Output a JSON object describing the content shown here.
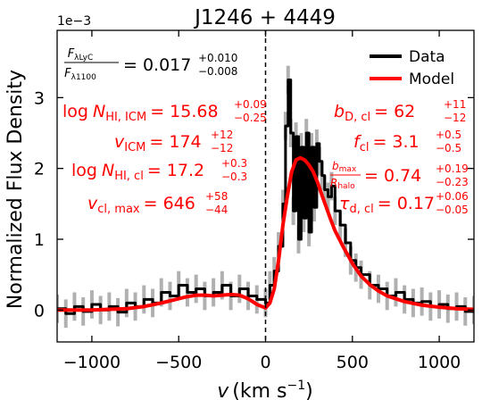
{
  "chart_data": {
    "type": "line",
    "title": "J1246 + 4449",
    "xlabel_var": "v",
    "xlabel_unit": "(km s",
    "xlabel_exp": "−1",
    "xlabel_close": ")",
    "ylabel": "Normalized Flux Density",
    "y_offset_text": "1e−3",
    "xlim": [
      -1200,
      1200
    ],
    "ylim": [
      -0.45,
      3.95
    ],
    "x_ticks": [
      -1000,
      -500,
      0,
      500,
      1000
    ],
    "x_tick_labels": [
      "−1000",
      "−500",
      "0",
      "500",
      "1000"
    ],
    "y_ticks": [
      0,
      1,
      2,
      3
    ],
    "y_tick_labels": [
      "0",
      "1",
      "2",
      "3"
    ],
    "vline_x": 0,
    "legend_position": "top-right",
    "colors": {
      "data": "#000000",
      "error": "#b0b0b0",
      "model": "#ff0000",
      "annotation_red": "#ff0000"
    },
    "series": [
      {
        "name": "Data",
        "x": [
          -1200,
          -1150,
          -1100,
          -1050,
          -1000,
          -950,
          -900,
          -850,
          -800,
          -750,
          -700,
          -650,
          -600,
          -550,
          -500,
          -450,
          -400,
          -350,
          -300,
          -250,
          -200,
          -150,
          -100,
          -50,
          0,
          25,
          50,
          75,
          100,
          115,
          130,
          145,
          160,
          175,
          190,
          205,
          220,
          235,
          250,
          265,
          280,
          295,
          310,
          325,
          340,
          360,
          380,
          400,
          430,
          460,
          490,
          520,
          550,
          600,
          650,
          700,
          750,
          800,
          850,
          900,
          950,
          1000,
          1050,
          1100,
          1150,
          1200
        ],
        "y": [
          0.02,
          -0.05,
          0.05,
          -0.02,
          0.08,
          0.0,
          0.05,
          -0.03,
          0.1,
          0.05,
          0.15,
          0.1,
          0.25,
          0.2,
          0.35,
          0.25,
          0.3,
          0.2,
          0.25,
          0.35,
          0.2,
          0.3,
          0.2,
          0.15,
          0.1,
          0.35,
          0.55,
          0.9,
          1.5,
          2.6,
          3.25,
          2.5,
          1.4,
          2.45,
          1.0,
          2.3,
          1.3,
          2.5,
          1.1,
          2.3,
          1.45,
          2.35,
          2.1,
          1.9,
          1.7,
          1.6,
          1.75,
          1.4,
          1.2,
          0.95,
          0.7,
          0.6,
          0.5,
          0.35,
          0.3,
          0.2,
          0.25,
          0.15,
          0.1,
          0.12,
          0.05,
          0.08,
          0.02,
          0.05,
          -0.02,
          0.0
        ],
        "err": 0.2
      },
      {
        "name": "Model",
        "x": [
          -1200,
          -1000,
          -800,
          -700,
          -600,
          -500,
          -450,
          -400,
          -350,
          -300,
          -250,
          -200,
          -150,
          -100,
          -50,
          0,
          25,
          50,
          75,
          100,
          125,
          150,
          175,
          200,
          225,
          250,
          275,
          300,
          325,
          350,
          375,
          400,
          450,
          500,
          550,
          600,
          650,
          700,
          800,
          900,
          1000,
          1100,
          1200
        ],
        "y": [
          0.0,
          0.0,
          0.02,
          0.05,
          0.1,
          0.16,
          0.19,
          0.21,
          0.21,
          0.2,
          0.21,
          0.22,
          0.21,
          0.16,
          0.08,
          0.03,
          0.1,
          0.3,
          0.7,
          1.2,
          1.6,
          1.95,
          2.12,
          2.15,
          2.12,
          2.05,
          1.95,
          1.8,
          1.62,
          1.45,
          1.28,
          1.12,
          0.88,
          0.66,
          0.48,
          0.36,
          0.27,
          0.2,
          0.12,
          0.07,
          0.04,
          0.02,
          0.01
        ]
      }
    ],
    "annotations": {
      "ratio": {
        "num_F": "F",
        "num_sub": "λLyC",
        "den_F": "F",
        "den_sub": "λ1100",
        "eq": "= 0.017",
        "sup": "+0.010",
        "sub": "−0.008"
      },
      "left": [
        {
          "lead": "log",
          "var": "N",
          "var_sub": "HI, ICM",
          "eq": "= 15.68",
          "sup": "+0.09",
          "sub": "−0.25"
        },
        {
          "lead": "",
          "var": "v",
          "var_sub": "ICM",
          "eq": "= 174",
          "sup": "+12",
          "sub": "−12"
        },
        {
          "lead": "log",
          "var": "N",
          "var_sub": "HI, cl",
          "eq": "= 17.2",
          "sup": "+0.3",
          "sub": "−0.3"
        },
        {
          "lead": "",
          "var": "v",
          "var_sub": "cl, max",
          "eq": "= 646",
          "sup": "+58",
          "sub": "−44"
        }
      ],
      "right": [
        {
          "var": "b",
          "var_sub": "D, cl",
          "eq": "= 62",
          "sup": "+11",
          "sub": "−12"
        },
        {
          "var": "f",
          "var_sub": "cl",
          "eq": "= 3.1",
          "sup": "+0.5",
          "sub": "−0.5"
        },
        {
          "frac_num": "b",
          "frac_num_sub": "max",
          "frac_den": "R",
          "frac_den_sub": "halo",
          "eq": "= 0.74",
          "sup": "+0.19",
          "sub": "−0.23"
        },
        {
          "var": "τ",
          "var_sub": "d, cl",
          "eq": "= 0.17",
          "sup": "+0.06",
          "sub": "−0.05"
        }
      ]
    }
  }
}
